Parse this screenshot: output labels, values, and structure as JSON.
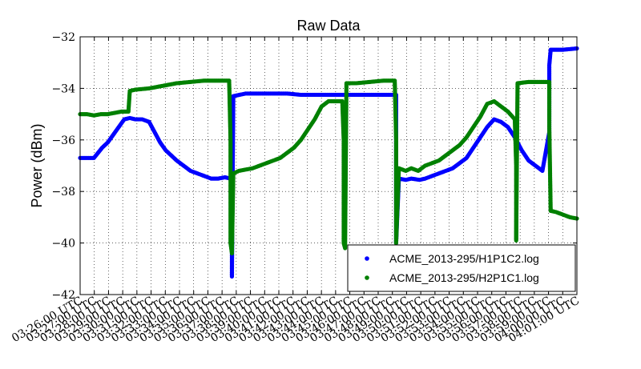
{
  "chart_data": {
    "type": "scatter",
    "title": "Raw Data",
    "xlabel": "",
    "ylabel": "Power (dBm)",
    "ylim": [
      -42,
      -32
    ],
    "yticks": [
      "−42",
      "−40",
      "−38",
      "−36",
      "−34",
      "−32"
    ],
    "xlim": [
      0,
      36
    ],
    "xticks": [
      "03:26:00 UTC",
      "03:27:00 UTC",
      "03:28:00 UTC",
      "03:29:00 UTC",
      "03:30:00 UTC",
      "03:31:00 UTC",
      "03:32:00 UTC",
      "03:33:00 UTC",
      "03:34:00 UTC",
      "03:35:00 UTC",
      "03:36:00 UTC",
      "03:37:00 UTC",
      "03:38:00 UTC",
      "03:39:00 UTC",
      "03:40:00 UTC",
      "03:41:00 UTC",
      "03:42:00 UTC",
      "03:43:00 UTC",
      "03:44:00 UTC",
      "03:45:00 UTC",
      "03:46:00 UTC",
      "03:47:00 UTC",
      "03:48:00 UTC",
      "03:49:00 UTC",
      "03:50:00 UTC",
      "03:51:00 UTC",
      "03:52:00 UTC",
      "03:53:00 UTC",
      "03:54:00 UTC",
      "03:55:00 UTC",
      "03:56:00 UTC",
      "03:57:00 UTC",
      "03:58:00 UTC",
      "03:59:00 UTC",
      "04:00:00 UTC",
      "04:01:00 UTC"
    ],
    "grid": true,
    "legend": "lower-right",
    "series": [
      {
        "name": "ACME_2013-295/H1P1C2.log",
        "color": "#0000ff",
        "points": [
          [
            0,
            -36.7
          ],
          [
            0.5,
            -36.7
          ],
          [
            1,
            -36.7
          ],
          [
            1.3,
            -36.5
          ],
          [
            1.6,
            -36.3
          ],
          [
            2,
            -36.1
          ],
          [
            2.4,
            -35.8
          ],
          [
            2.8,
            -35.5
          ],
          [
            3.2,
            -35.2
          ],
          [
            3.6,
            -35.15
          ],
          [
            4,
            -35.2
          ],
          [
            4.5,
            -35.2
          ],
          [
            5,
            -35.3
          ],
          [
            5.4,
            -35.7
          ],
          [
            5.8,
            -36.1
          ],
          [
            6.2,
            -36.4
          ],
          [
            6.6,
            -36.6
          ],
          [
            7,
            -36.8
          ],
          [
            7.5,
            -37.0
          ],
          [
            8,
            -37.2
          ],
          [
            8.5,
            -37.3
          ],
          [
            9,
            -37.4
          ],
          [
            9.5,
            -37.5
          ],
          [
            10,
            -37.5
          ],
          [
            10.5,
            -37.45
          ],
          [
            10.9,
            -37.5
          ],
          [
            11,
            -38.0
          ],
          [
            11,
            -39.0
          ],
          [
            11,
            -40.0
          ],
          [
            11,
            -41.0
          ],
          [
            11,
            -41.3
          ],
          [
            11.1,
            -34.3
          ],
          [
            12,
            -34.2
          ],
          [
            13,
            -34.2
          ],
          [
            14,
            -34.2
          ],
          [
            15,
            -34.2
          ],
          [
            16,
            -34.25
          ],
          [
            17,
            -34.25
          ],
          [
            18,
            -34.25
          ],
          [
            19,
            -34.25
          ],
          [
            20,
            -34.25
          ],
          [
            21,
            -34.25
          ],
          [
            22,
            -34.25
          ],
          [
            22.9,
            -34.25
          ],
          [
            22.9,
            -36.0
          ],
          [
            22.9,
            -38.0
          ],
          [
            22.9,
            -40.0
          ],
          [
            23.1,
            -37.5
          ],
          [
            23.6,
            -37.55
          ],
          [
            24,
            -37.5
          ],
          [
            24.6,
            -37.55
          ],
          [
            25,
            -37.5
          ],
          [
            25.5,
            -37.4
          ],
          [
            26,
            -37.3
          ],
          [
            26.5,
            -37.2
          ],
          [
            27,
            -37.1
          ],
          [
            27.5,
            -36.9
          ],
          [
            28,
            -36.7
          ],
          [
            28.5,
            -36.3
          ],
          [
            29,
            -35.9
          ],
          [
            29.5,
            -35.5
          ],
          [
            30,
            -35.2
          ],
          [
            30.5,
            -35.3
          ],
          [
            31,
            -35.5
          ],
          [
            31.5,
            -35.9
          ],
          [
            32,
            -36.4
          ],
          [
            32.5,
            -36.8
          ],
          [
            33,
            -37.0
          ],
          [
            33.5,
            -37.2
          ],
          [
            34,
            -35.7
          ],
          [
            34,
            -34.0
          ],
          [
            34,
            -33.1
          ],
          [
            34.1,
            -32.5
          ],
          [
            35,
            -32.5
          ],
          [
            36,
            -32.45
          ]
        ]
      },
      {
        "name": "ACME_2013-295/H2P1C1.log",
        "color": "#008000",
        "points": [
          [
            0,
            -35.0
          ],
          [
            0.5,
            -35.0
          ],
          [
            1,
            -35.05
          ],
          [
            1.5,
            -35.0
          ],
          [
            2,
            -35.0
          ],
          [
            2.5,
            -34.95
          ],
          [
            3,
            -34.9
          ],
          [
            3.5,
            -34.9
          ],
          [
            3.6,
            -34.1
          ],
          [
            4,
            -34.05
          ],
          [
            5,
            -34.0
          ],
          [
            6,
            -33.9
          ],
          [
            7,
            -33.8
          ],
          [
            8,
            -33.75
          ],
          [
            9,
            -33.7
          ],
          [
            10,
            -33.7
          ],
          [
            10.8,
            -33.7
          ],
          [
            10.9,
            -36.0
          ],
          [
            10.9,
            -38.0
          ],
          [
            10.9,
            -40.0
          ],
          [
            11,
            -40.4
          ],
          [
            11.1,
            -37.3
          ],
          [
            11.5,
            -37.2
          ],
          [
            12,
            -37.15
          ],
          [
            12.5,
            -37.1
          ],
          [
            13,
            -37.0
          ],
          [
            13.5,
            -36.9
          ],
          [
            14,
            -36.8
          ],
          [
            14.5,
            -36.7
          ],
          [
            15,
            -36.5
          ],
          [
            15.5,
            -36.3
          ],
          [
            16,
            -36.0
          ],
          [
            16.5,
            -35.6
          ],
          [
            17,
            -35.2
          ],
          [
            17.5,
            -34.7
          ],
          [
            18,
            -34.5
          ],
          [
            18.5,
            -34.5
          ],
          [
            19,
            -34.5
          ],
          [
            19.1,
            -36.0
          ],
          [
            19.1,
            -38.0
          ],
          [
            19.1,
            -40.0
          ],
          [
            19.2,
            -40.2
          ],
          [
            19.3,
            -33.8
          ],
          [
            20,
            -33.8
          ],
          [
            21,
            -33.75
          ],
          [
            22,
            -33.7
          ],
          [
            22.8,
            -33.7
          ],
          [
            22.9,
            -36.0
          ],
          [
            22.9,
            -38.0
          ],
          [
            22.9,
            -40.0
          ],
          [
            23.1,
            -37.1
          ],
          [
            23.6,
            -37.2
          ],
          [
            24,
            -37.1
          ],
          [
            24.5,
            -37.2
          ],
          [
            25,
            -37.0
          ],
          [
            25.5,
            -36.9
          ],
          [
            26,
            -36.8
          ],
          [
            26.5,
            -36.6
          ],
          [
            27,
            -36.4
          ],
          [
            27.5,
            -36.2
          ],
          [
            28,
            -35.9
          ],
          [
            28.5,
            -35.5
          ],
          [
            29,
            -35.1
          ],
          [
            29.5,
            -34.6
          ],
          [
            30,
            -34.5
          ],
          [
            30.5,
            -34.7
          ],
          [
            31,
            -34.9
          ],
          [
            31.5,
            -35.2
          ],
          [
            31.6,
            -37.0
          ],
          [
            31.6,
            -38.5
          ],
          [
            31.6,
            -39.9
          ],
          [
            31.7,
            -33.8
          ],
          [
            32.5,
            -33.75
          ],
          [
            33.5,
            -33.75
          ],
          [
            34,
            -33.75
          ],
          [
            34,
            -34.5
          ],
          [
            34,
            -35.5
          ],
          [
            34.1,
            -38.75
          ],
          [
            34.5,
            -38.8
          ],
          [
            35,
            -38.9
          ],
          [
            35.5,
            -39.0
          ],
          [
            36,
            -39.05
          ]
        ]
      }
    ]
  }
}
